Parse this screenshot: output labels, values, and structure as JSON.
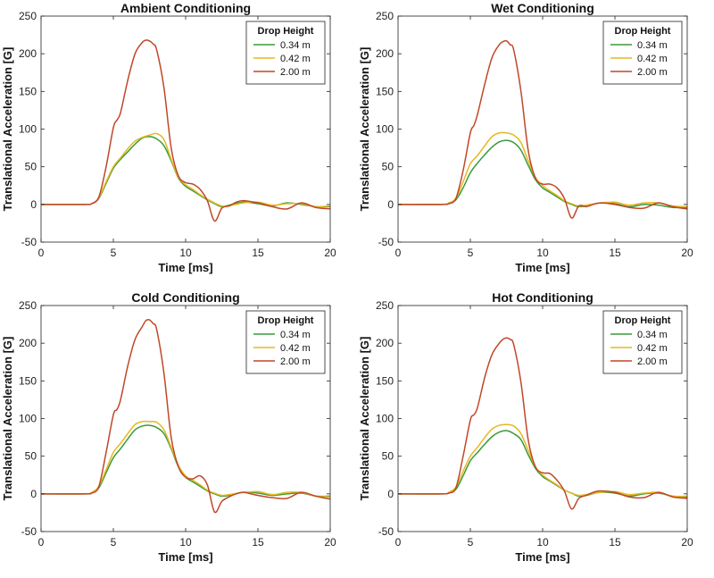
{
  "chart_data": [
    {
      "type": "line",
      "title": "Ambient Conditioning",
      "xlabel": "Time [ms]",
      "ylabel": "Translational Acceleration [G]",
      "xlim": [
        0,
        20
      ],
      "ylim": [
        -50,
        250
      ],
      "xticks": [
        0,
        5,
        10,
        15,
        20
      ],
      "yticks": [
        -50,
        0,
        50,
        100,
        150,
        200,
        250
      ],
      "grid": false,
      "legend": {
        "title": "Drop Height",
        "position": "top-right"
      },
      "series": [
        {
          "name": "0.34 m",
          "color": "#3a9a3a",
          "x": [
            0,
            3,
            3.5,
            4,
            4.5,
            5,
            5.5,
            6,
            6.5,
            7,
            7.5,
            8,
            8.5,
            9,
            9.5,
            10,
            10.5,
            11,
            11.5,
            12,
            12.5,
            13,
            14,
            15,
            16,
            17,
            18,
            19,
            20
          ],
          "y": [
            0,
            0,
            1,
            8,
            28,
            48,
            60,
            70,
            80,
            88,
            90,
            87,
            78,
            58,
            35,
            24,
            18,
            12,
            6,
            1,
            -3,
            -1,
            3,
            1,
            -2,
            2,
            0,
            -3,
            -3
          ]
        },
        {
          "name": "0.42 m",
          "color": "#e6b820",
          "x": [
            0,
            3,
            3.5,
            4,
            4.5,
            5,
            5.5,
            6,
            6.5,
            7,
            7.5,
            8,
            8.5,
            9,
            9.5,
            10,
            10.5,
            11,
            11.5,
            12,
            12.5,
            13,
            14,
            15,
            16,
            17,
            18,
            19,
            20
          ],
          "y": [
            0,
            0,
            1,
            9,
            30,
            50,
            62,
            74,
            84,
            89,
            92,
            94,
            86,
            60,
            36,
            26,
            20,
            13,
            7,
            2,
            -2,
            -2,
            2,
            3,
            -1,
            1,
            1,
            -3,
            -2
          ]
        },
        {
          "name": "2.00 m",
          "color": "#c0472a",
          "x": [
            0,
            3,
            3.5,
            4,
            4.5,
            5,
            5.25,
            5.5,
            6,
            6.5,
            7,
            7.25,
            7.5,
            7.75,
            8,
            8.5,
            9,
            9.5,
            10,
            10.5,
            11,
            11.5,
            12,
            12.5,
            13,
            13.5,
            14,
            15,
            16,
            17,
            18,
            19,
            20
          ],
          "y": [
            0,
            0,
            1,
            10,
            50,
            102,
            112,
            122,
            165,
            200,
            215,
            218,
            217,
            213,
            205,
            155,
            75,
            38,
            29,
            27,
            20,
            5,
            -22,
            -5,
            -2,
            3,
            5,
            2,
            -3,
            -6,
            2,
            -4,
            -6
          ]
        }
      ]
    },
    {
      "type": "line",
      "title": "Wet Conditioning",
      "xlabel": "Time [ms]",
      "ylabel": "Translational Acceleration [G]",
      "xlim": [
        0,
        20
      ],
      "ylim": [
        -50,
        250
      ],
      "xticks": [
        0,
        5,
        10,
        15,
        20
      ],
      "yticks": [
        -50,
        0,
        50,
        100,
        150,
        200,
        250
      ],
      "grid": false,
      "legend": {
        "title": "Drop Height",
        "position": "top-right"
      },
      "series": [
        {
          "name": "0.34 m",
          "color": "#3a9a3a",
          "x": [
            0,
            3,
            3.5,
            4,
            4.5,
            5,
            5.5,
            6,
            6.5,
            7,
            7.5,
            8,
            8.5,
            9,
            9.5,
            10,
            10.5,
            11,
            11.5,
            12,
            12.5,
            13,
            14,
            15,
            16,
            17,
            18,
            19,
            20
          ],
          "y": [
            0,
            0,
            1,
            6,
            22,
            42,
            55,
            66,
            76,
            83,
            85,
            82,
            72,
            52,
            33,
            22,
            16,
            10,
            4,
            0,
            -3,
            -2,
            2,
            1,
            -3,
            0,
            -1,
            -4,
            -4
          ]
        },
        {
          "name": "0.42 m",
          "color": "#e6b820",
          "x": [
            0,
            3,
            3.5,
            4,
            4.5,
            5,
            5.5,
            6,
            6.5,
            7,
            7.5,
            8,
            8.5,
            9,
            9.5,
            10,
            10.5,
            11,
            11.5,
            12,
            12.5,
            13,
            14,
            15,
            16,
            17,
            18,
            19,
            20
          ],
          "y": [
            0,
            0,
            2,
            8,
            30,
            54,
            65,
            78,
            90,
            95,
            95,
            92,
            82,
            58,
            36,
            25,
            18,
            12,
            5,
            1,
            -2,
            -1,
            2,
            3,
            -1,
            2,
            2,
            -2,
            -3
          ]
        },
        {
          "name": "2.00 m",
          "color": "#c0472a",
          "x": [
            0,
            3,
            3.5,
            4,
            4.5,
            5,
            5.25,
            5.5,
            6,
            6.5,
            7,
            7.25,
            7.5,
            7.75,
            8,
            8.5,
            9,
            9.5,
            10,
            10.5,
            11,
            11.5,
            12,
            12.5,
            13,
            13.5,
            14,
            15,
            16,
            17,
            18,
            19,
            20
          ],
          "y": [
            0,
            0,
            1,
            8,
            45,
            95,
            105,
            120,
            160,
            195,
            212,
            216,
            217,
            212,
            205,
            150,
            72,
            35,
            27,
            27,
            22,
            8,
            -18,
            -2,
            -3,
            0,
            2,
            0,
            -4,
            -5,
            2,
            -3,
            -6
          ]
        }
      ]
    },
    {
      "type": "line",
      "title": "Cold Conditioning",
      "xlabel": "Time [ms]",
      "ylabel": "Translational Acceleration [G]",
      "xlim": [
        0,
        20
      ],
      "ylim": [
        -50,
        250
      ],
      "xticks": [
        0,
        5,
        10,
        15,
        20
      ],
      "yticks": [
        -50,
        0,
        50,
        100,
        150,
        200,
        250
      ],
      "grid": false,
      "legend": {
        "title": "Drop Height",
        "position": "top-right"
      },
      "series": [
        {
          "name": "0.34 m",
          "color": "#3a9a3a",
          "x": [
            0,
            3,
            3.5,
            4,
            4.5,
            5,
            5.5,
            6,
            6.5,
            7,
            7.5,
            8,
            8.5,
            9,
            9.5,
            10,
            10.5,
            11,
            11.5,
            12,
            12.5,
            13,
            14,
            15,
            16,
            17,
            18,
            19,
            20
          ],
          "y": [
            0,
            0,
            1,
            8,
            28,
            48,
            60,
            73,
            85,
            90,
            91,
            88,
            80,
            60,
            36,
            22,
            16,
            10,
            4,
            0,
            -3,
            -2,
            2,
            1,
            -2,
            0,
            1,
            -3,
            -3
          ]
        },
        {
          "name": "0.42 m",
          "color": "#e6b820",
          "x": [
            0,
            3,
            3.5,
            4,
            4.5,
            5,
            5.5,
            6,
            6.5,
            7,
            7.5,
            8,
            8.5,
            9,
            9.5,
            10,
            10.5,
            11,
            11.5,
            12,
            12.5,
            13,
            14,
            15,
            16,
            17,
            18,
            19,
            20
          ],
          "y": [
            0,
            0,
            2,
            10,
            32,
            55,
            67,
            80,
            92,
            96,
            96,
            95,
            85,
            62,
            38,
            24,
            18,
            12,
            5,
            1,
            -2,
            -1,
            2,
            3,
            -1,
            2,
            2,
            -3,
            -4
          ]
        },
        {
          "name": "2.00 m",
          "color": "#c0472a",
          "x": [
            0,
            3,
            3.5,
            4,
            4.5,
            5,
            5.25,
            5.5,
            6,
            6.5,
            7,
            7.25,
            7.5,
            7.75,
            8,
            8.5,
            9,
            9.5,
            10,
            10.5,
            11,
            11.5,
            12,
            12.5,
            13,
            13.5,
            14,
            15,
            16,
            17,
            18,
            19,
            20
          ],
          "y": [
            0,
            0,
            1,
            10,
            55,
            105,
            112,
            125,
            170,
            205,
            222,
            230,
            231,
            226,
            218,
            160,
            75,
            36,
            22,
            20,
            24,
            12,
            -24,
            -10,
            -4,
            0,
            2,
            -2,
            -5,
            -6,
            2,
            -3,
            -7
          ]
        }
      ]
    },
    {
      "type": "line",
      "title": "Hot Conditioning",
      "xlabel": "Time [ms]",
      "ylabel": "Translational Acceleration [G]",
      "xlim": [
        0,
        20
      ],
      "ylim": [
        -50,
        250
      ],
      "xticks": [
        0,
        5,
        10,
        15,
        20
      ],
      "yticks": [
        -50,
        0,
        50,
        100,
        150,
        200,
        250
      ],
      "grid": false,
      "legend": {
        "title": "Drop Height",
        "position": "top-right"
      },
      "series": [
        {
          "name": "0.34 m",
          "color": "#3a9a3a",
          "x": [
            0,
            3,
            3.5,
            4,
            4.5,
            5,
            5.5,
            6,
            6.5,
            7,
            7.5,
            8,
            8.5,
            9,
            9.5,
            10,
            10.5,
            11,
            11.5,
            12,
            12.5,
            13,
            14,
            15,
            16,
            17,
            18,
            19,
            20
          ],
          "y": [
            0,
            0,
            1,
            6,
            24,
            44,
            55,
            66,
            76,
            82,
            84,
            80,
            72,
            52,
            34,
            23,
            17,
            11,
            5,
            1,
            -3,
            -2,
            2,
            1,
            -3,
            0,
            1,
            -3,
            -4
          ]
        },
        {
          "name": "0.42 m",
          "color": "#e6b820",
          "x": [
            0,
            3,
            3.5,
            4,
            4.5,
            5,
            5.5,
            6,
            6.5,
            7,
            7.5,
            8,
            8.5,
            9,
            9.5,
            10,
            10.5,
            11,
            11.5,
            12,
            12.5,
            13,
            14,
            15,
            16,
            17,
            18,
            19,
            20
          ],
          "y": [
            0,
            0,
            2,
            9,
            30,
            50,
            62,
            75,
            86,
            91,
            92,
            90,
            80,
            58,
            36,
            25,
            18,
            12,
            5,
            1,
            -2,
            -1,
            2,
            3,
            -1,
            1,
            2,
            -3,
            -3
          ]
        },
        {
          "name": "2.00 m",
          "color": "#c0472a",
          "x": [
            0,
            3,
            3.5,
            4,
            4.5,
            5,
            5.25,
            5.5,
            6,
            6.5,
            7,
            7.25,
            7.5,
            7.75,
            8,
            8.5,
            9,
            9.5,
            10,
            10.5,
            11,
            11.5,
            12,
            12.5,
            13,
            13.5,
            14,
            15,
            16,
            17,
            18,
            19,
            20
          ],
          "y": [
            0,
            0,
            1,
            8,
            50,
            98,
            105,
            115,
            155,
            185,
            200,
            205,
            207,
            205,
            198,
            148,
            72,
            36,
            28,
            27,
            18,
            4,
            -20,
            -6,
            -2,
            2,
            4,
            2,
            -4,
            -5,
            2,
            -4,
            -6
          ]
        }
      ]
    }
  ]
}
